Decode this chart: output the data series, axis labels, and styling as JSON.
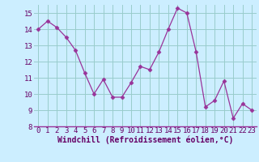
{
  "x": [
    0,
    1,
    2,
    3,
    4,
    5,
    6,
    7,
    8,
    9,
    10,
    11,
    12,
    13,
    14,
    15,
    16,
    17,
    18,
    19,
    20,
    21,
    22,
    23
  ],
  "y": [
    14.0,
    14.5,
    14.1,
    13.5,
    12.7,
    11.3,
    10.0,
    10.9,
    9.8,
    9.8,
    10.7,
    11.7,
    11.5,
    12.6,
    14.0,
    15.3,
    15.0,
    12.6,
    9.2,
    9.6,
    10.8,
    8.5,
    9.4,
    9.0
  ],
  "line_color": "#993399",
  "marker": "D",
  "marker_size": 2.5,
  "bg_color": "#cceeff",
  "grid_color": "#99cccc",
  "xlabel": "Windchill (Refroidissement éolien,°C)",
  "ylim": [
    8,
    15.5
  ],
  "xlim": [
    -0.5,
    23.5
  ],
  "yticks": [
    8,
    9,
    10,
    11,
    12,
    13,
    14,
    15
  ],
  "xticks": [
    0,
    1,
    2,
    3,
    4,
    5,
    6,
    7,
    8,
    9,
    10,
    11,
    12,
    13,
    14,
    15,
    16,
    17,
    18,
    19,
    20,
    21,
    22,
    23
  ],
  "xlabel_fontsize": 7,
  "tick_fontsize": 6.5
}
